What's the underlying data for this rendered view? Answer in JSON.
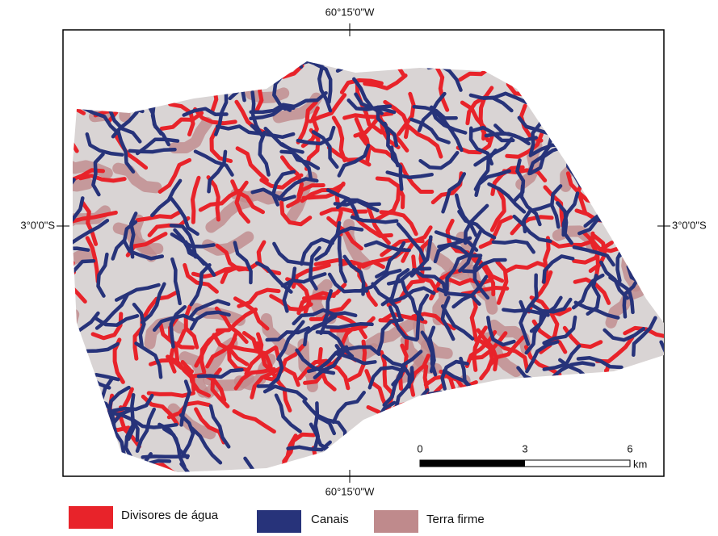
{
  "map": {
    "labels": {
      "top": "60°15'0\"W",
      "bottom": "60°15'0\"W",
      "left": "3°0'0\"S",
      "right": "3°0'0\"S"
    },
    "scale_bar": {
      "ticks": [
        0,
        3,
        6
      ],
      "unit": "km"
    },
    "legend": [
      {
        "label": "Divisores de água",
        "color": "#e8232a"
      },
      {
        "label": "Canais",
        "color": "#27337a"
      },
      {
        "label": "Terra firme",
        "color": "#bf8a8c"
      }
    ]
  }
}
